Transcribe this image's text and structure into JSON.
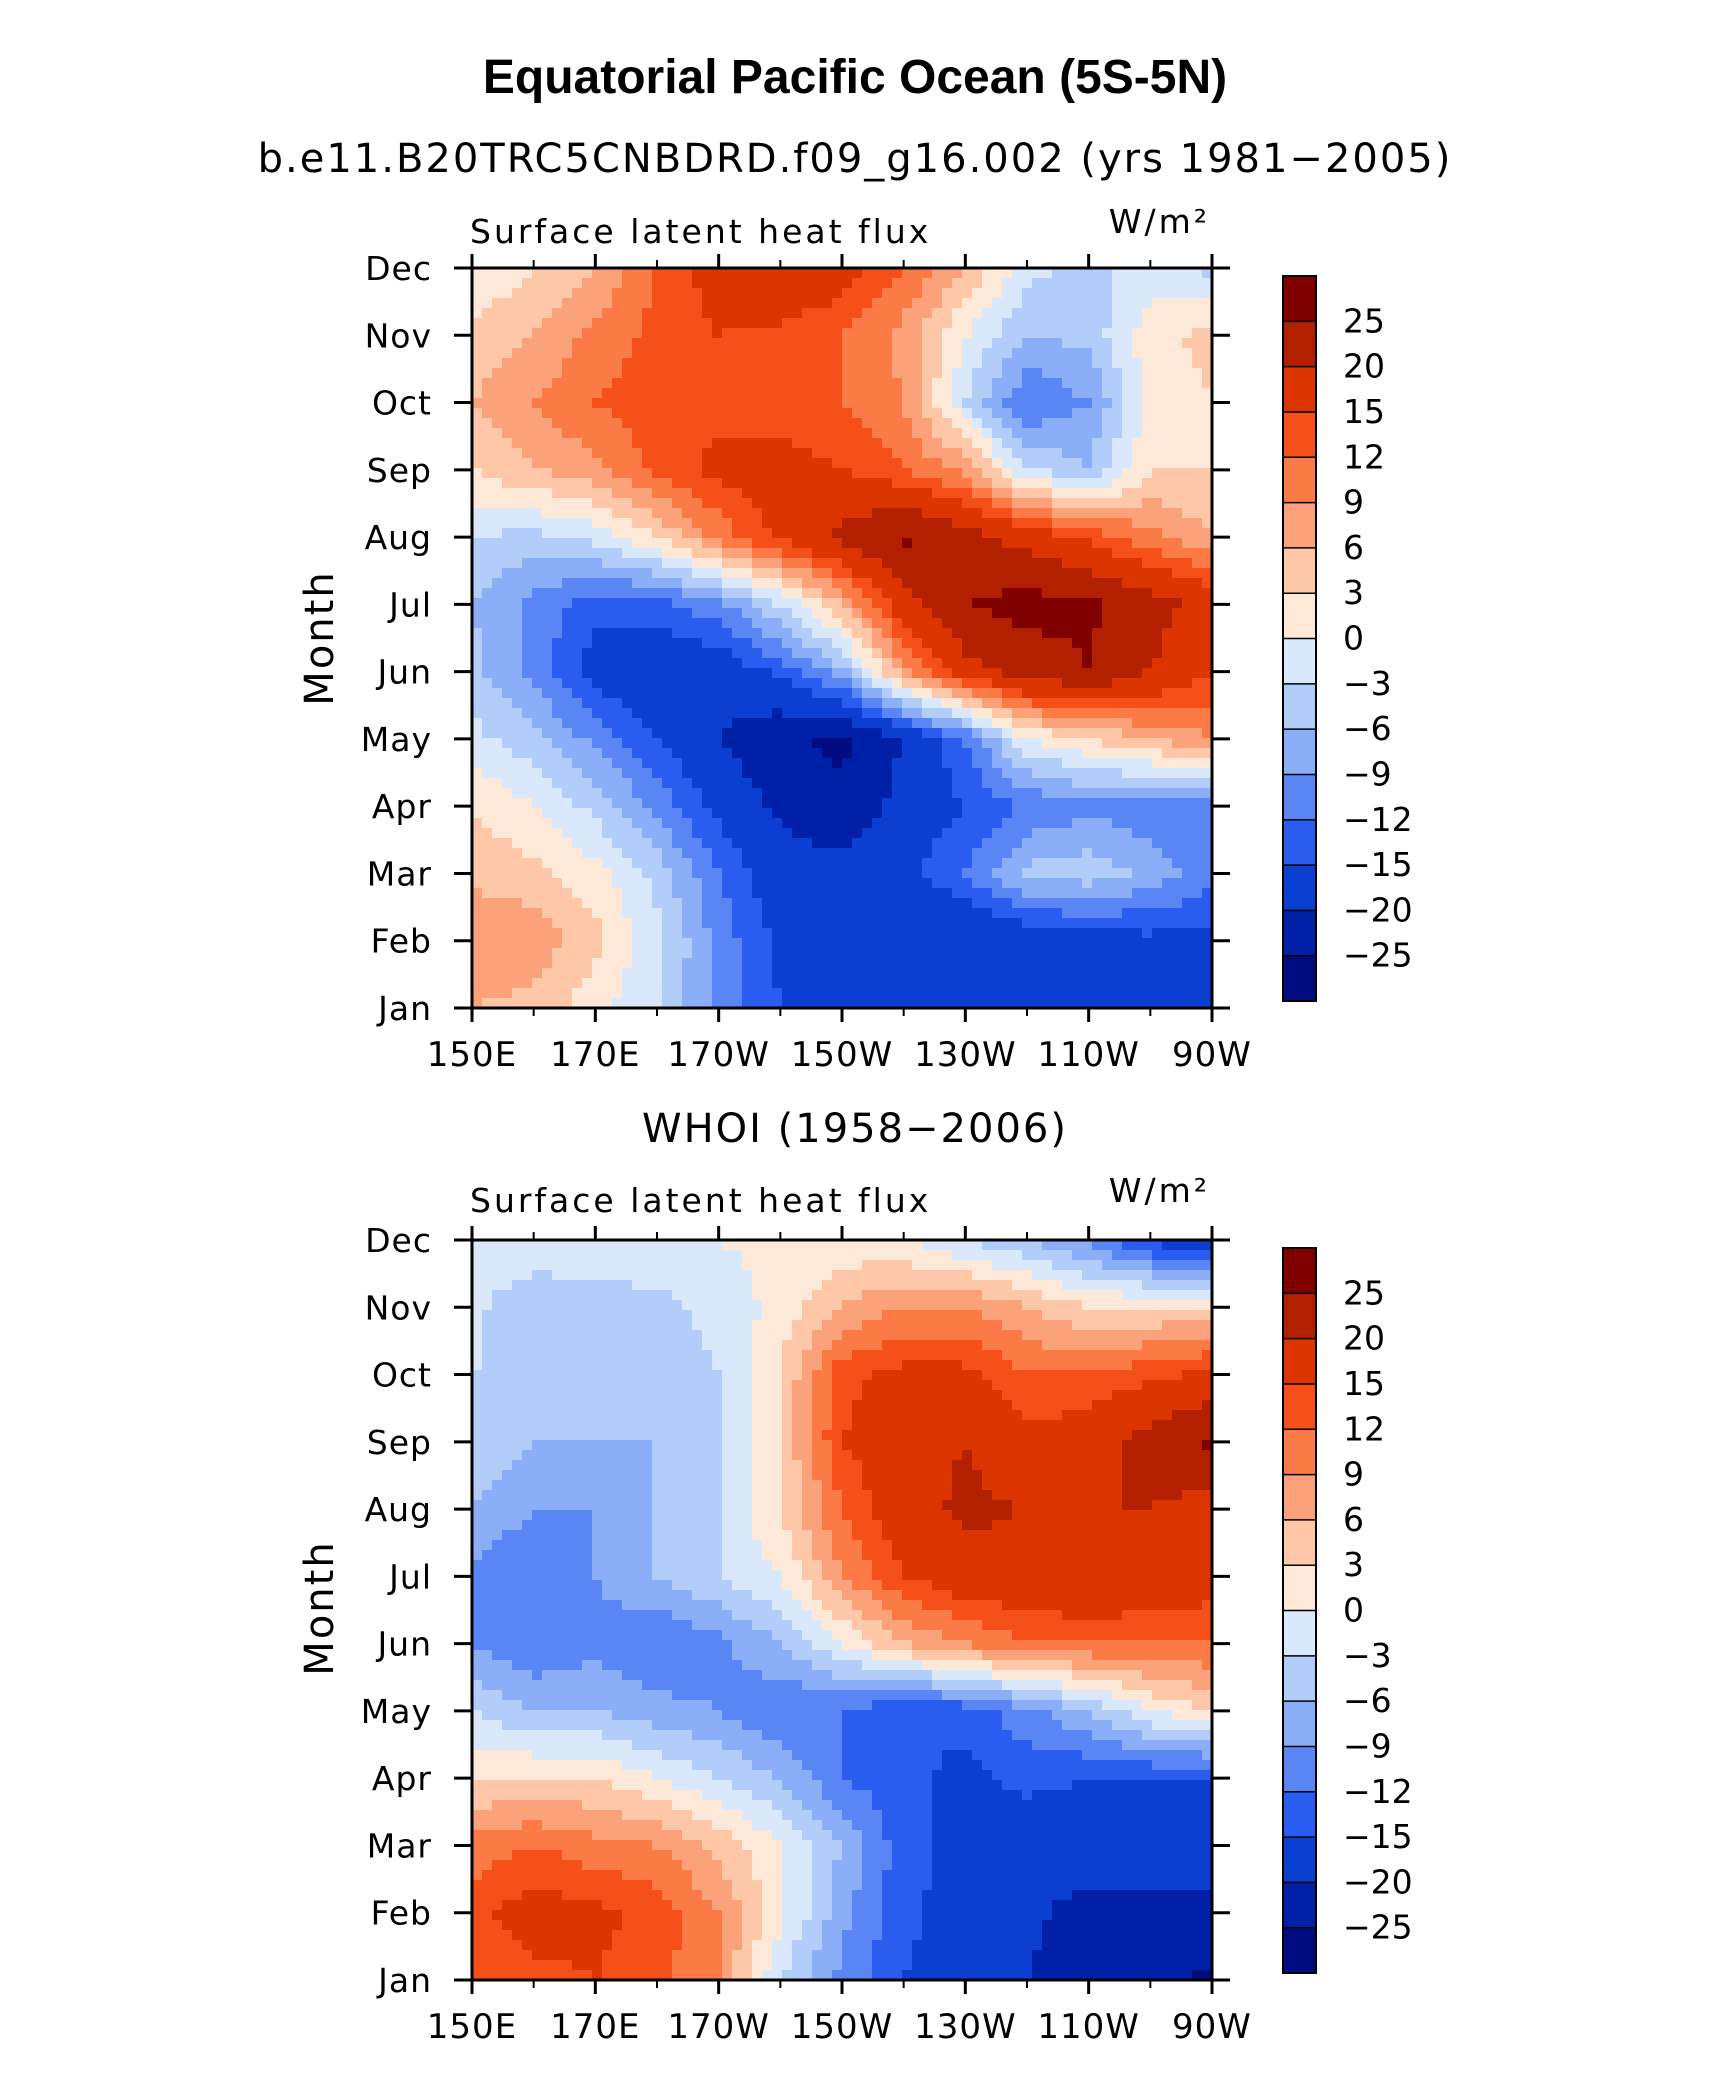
{
  "page": {
    "title": "Equatorial Pacific Ocean (5S-5N)"
  },
  "colorbar": {
    "levels": [
      "25",
      "20",
      "15",
      "12",
      "9",
      "6",
      "3",
      "0",
      "−3",
      "−6",
      "−9",
      "−12",
      "−15",
      "−20",
      "−25"
    ],
    "colors": [
      "#800000",
      "#b32000",
      "#dd3500",
      "#f6501a",
      "#fb7a45",
      "#fca27a",
      "#fdc7a8",
      "#fee8d8",
      "#d9e8fb",
      "#b3cdfa",
      "#8aaef7",
      "#5a86f5",
      "#2b5cf0",
      "#0b3fd2",
      "#0020a8",
      "#000c80"
    ]
  },
  "chart_data": [
    {
      "type": "heatmap",
      "subtitle": "b.e11.B20TRC5CNBDRD.f09_g16.002 (yrs 1981−2005)",
      "label_left": "Surface latent heat flux",
      "label_right": "W/m²",
      "ylabel": "Month",
      "x_ticklabels": [
        "150E",
        "170E",
        "170W",
        "150W",
        "130W",
        "110W",
        "90W"
      ],
      "y_ticklabels": [
        "Jan",
        "Feb",
        "Mar",
        "Apr",
        "May",
        "Jun",
        "Jul",
        "Aug",
        "Sep",
        "Oct",
        "Nov",
        "Dec"
      ],
      "x_lon": [
        150,
        160,
        170,
        180,
        190,
        200,
        210,
        220,
        230,
        240,
        250,
        260,
        270
      ],
      "y_months": [
        "Jan",
        "Feb",
        "Mar",
        "Apr",
        "May",
        "Jun",
        "Jul",
        "Aug",
        "Sep",
        "Oct",
        "Nov",
        "Dec"
      ],
      "values": [
        [
          6,
          5,
          1,
          -3,
          -10,
          -15,
          -17,
          -18,
          -19,
          -19,
          -18,
          -17,
          -17
        ],
        [
          9,
          8,
          4,
          -2,
          -10,
          -16,
          -18,
          -20,
          -20,
          -18,
          -17,
          -16,
          -16
        ],
        [
          5,
          4,
          1,
          -4,
          -12,
          -18,
          -18,
          -16,
          -12,
          -5,
          -4,
          -7,
          -11
        ],
        [
          3,
          0,
          -4,
          -10,
          -16,
          -21,
          -24,
          -18,
          -15,
          -12,
          -10,
          -11,
          -12
        ],
        [
          -2,
          -5,
          -10,
          -15,
          -20,
          -24,
          -26,
          -20,
          -12,
          0,
          3,
          6,
          9
        ],
        [
          -5,
          -10,
          -17,
          -19,
          -18,
          -14,
          -7,
          8,
          18,
          22,
          25,
          20,
          15
        ],
        [
          -6,
          -10,
          -14,
          -13,
          -10,
          -3,
          6,
          18,
          25,
          27,
          26,
          22,
          18
        ],
        [
          -3,
          -4,
          -2,
          3,
          10,
          16,
          21,
          26,
          22,
          18,
          14,
          10,
          6
        ],
        [
          3,
          6,
          8,
          13,
          16,
          17,
          15,
          12,
          8,
          -3,
          -6,
          3,
          3
        ],
        [
          6,
          9,
          12,
          14,
          14,
          13,
          12,
          9,
          -3,
          -12,
          -9,
          1,
          3
        ],
        [
          4,
          6,
          10,
          13,
          15,
          14,
          12,
          8,
          0,
          -6,
          -5,
          2,
          4
        ],
        [
          0,
          3,
          6,
          12,
          17,
          20,
          17,
          12,
          6,
          -2,
          -4,
          -2,
          -4
        ]
      ]
    },
    {
      "type": "heatmap",
      "subtitle": "WHOI (1958−2006)",
      "label_left": "Surface latent heat flux",
      "label_right": "W/m²",
      "ylabel": "Month",
      "x_ticklabels": [
        "150E",
        "170E",
        "170W",
        "150W",
        "130W",
        "110W",
        "90W"
      ],
      "y_ticklabels": [
        "Jan",
        "Feb",
        "Mar",
        "Apr",
        "May",
        "Jun",
        "Jul",
        "Aug",
        "Sep",
        "Oct",
        "Nov",
        "Dec"
      ],
      "x_lon": [
        150,
        160,
        170,
        180,
        190,
        200,
        210,
        220,
        230,
        240,
        250,
        260,
        270
      ],
      "y_months": [
        "Jan",
        "Feb",
        "Mar",
        "Apr",
        "May",
        "Jun",
        "Jul",
        "Aug",
        "Sep",
        "Oct",
        "Nov",
        "Dec"
      ],
      "values": [
        [
          12,
          14,
          15,
          13,
          9,
          -3,
          -10,
          -15,
          -18,
          -20,
          -22,
          -24,
          -26
        ],
        [
          14,
          17,
          16,
          14,
          9,
          1,
          -8,
          -14,
          -17,
          -19,
          -22,
          -22,
          -22
        ],
        [
          10,
          12,
          10,
          9,
          5,
          0,
          -6,
          -14,
          -16,
          -18,
          -17,
          -16,
          -17
        ],
        [
          3,
          3,
          3,
          0,
          -3,
          -6,
          -12,
          -14,
          -16,
          -14,
          -15,
          -15,
          -15
        ],
        [
          -3,
          -6,
          -6,
          -8,
          -9,
          -12,
          -12,
          -15,
          -14,
          -10,
          -6,
          0,
          3
        ],
        [
          -9,
          -12,
          -10,
          -12,
          -10,
          -6,
          0,
          6,
          9,
          12,
          12,
          12,
          12
        ],
        [
          -10,
          -12,
          -9,
          -6,
          -3,
          0,
          9,
          15,
          18,
          18,
          20,
          18,
          17
        ],
        [
          -6,
          -9,
          -9,
          -6,
          -3,
          3,
          12,
          18,
          21,
          20,
          20,
          20,
          18
        ],
        [
          -3,
          -6,
          -6,
          -6,
          -3,
          3,
          15,
          18,
          20,
          16,
          18,
          22,
          26
        ],
        [
          -3,
          -4,
          -4,
          -5,
          -3,
          3,
          14,
          16,
          16,
          12,
          12,
          14,
          16
        ],
        [
          -2,
          -6,
          -5,
          -4,
          -2,
          1,
          6,
          9,
          9,
          6,
          3,
          3,
          3
        ],
        [
          -1,
          0,
          0,
          0,
          0,
          1,
          1,
          0,
          -3,
          -6,
          -10,
          -16,
          -20
        ]
      ]
    }
  ]
}
